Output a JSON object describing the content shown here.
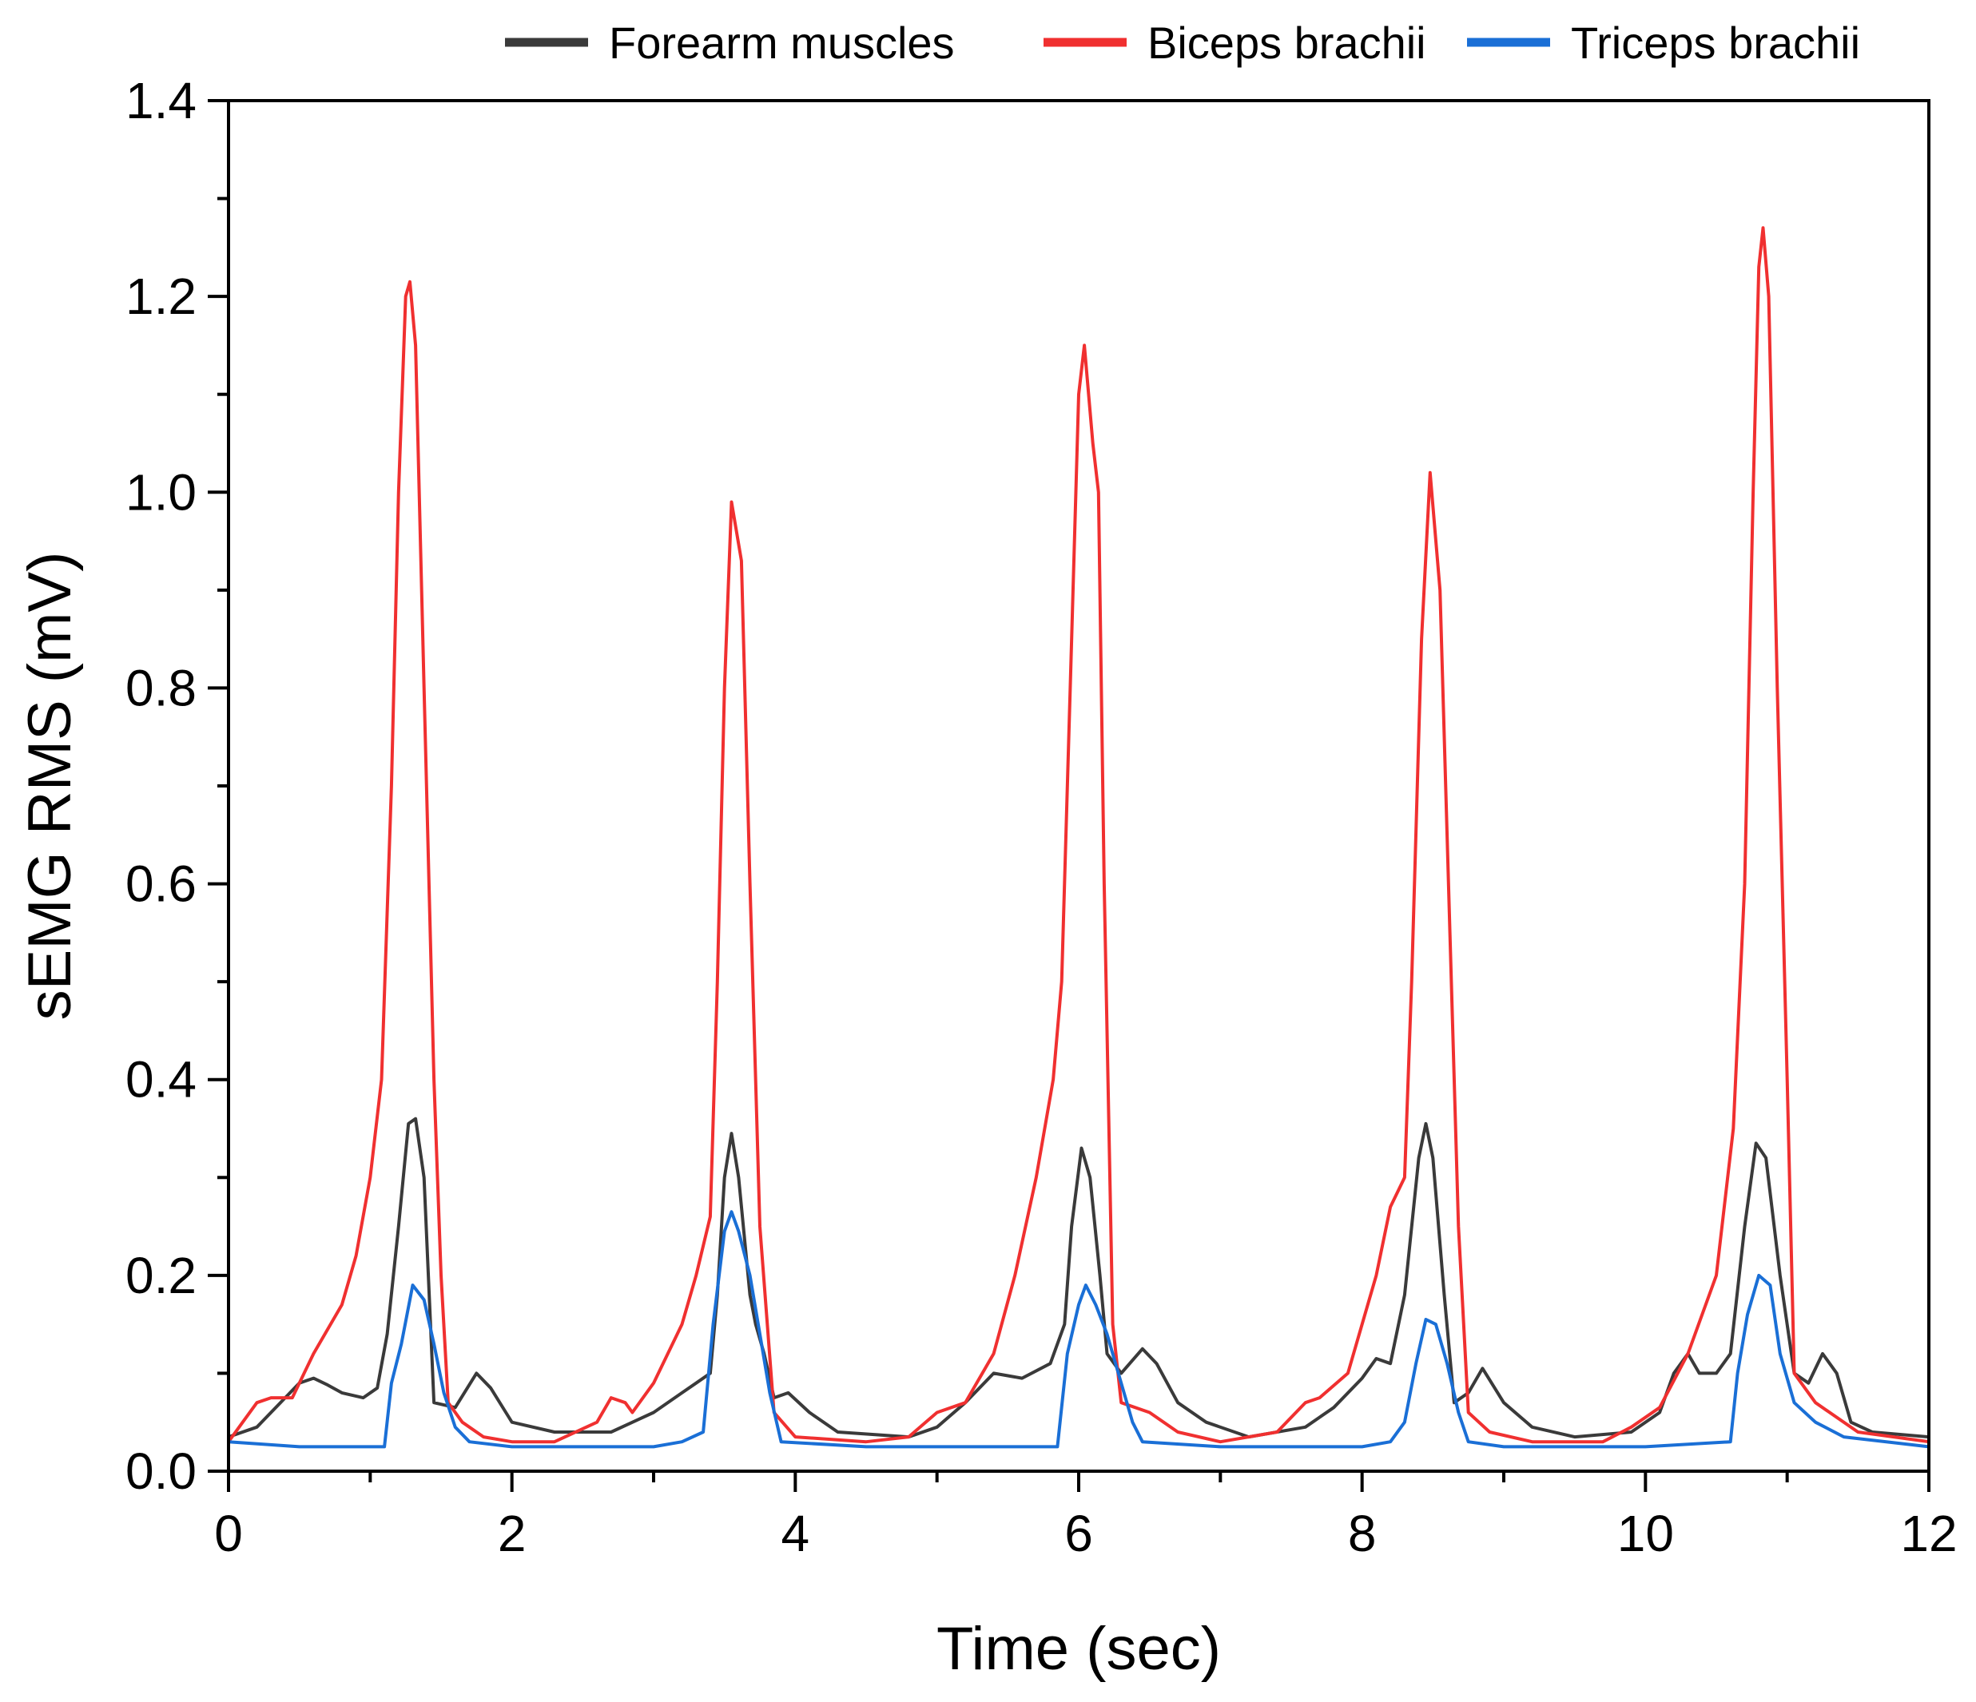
{
  "chart_data": {
    "type": "line",
    "title": "",
    "xlabel": "Time (sec)",
    "ylabel": "sEMG RMS (mV)",
    "xlim": [
      0,
      12
    ],
    "ylim": [
      0.0,
      1.4
    ],
    "x_ticks": [
      0,
      2,
      4,
      6,
      8,
      10,
      12
    ],
    "x_tick_labels": [
      "0",
      "2",
      "4",
      "6",
      "8",
      "10",
      "12"
    ],
    "y_ticks": [
      0.0,
      0.2,
      0.4,
      0.6,
      0.8,
      1.0,
      1.2,
      1.4
    ],
    "y_tick_labels": [
      "0.0",
      "0.2",
      "0.4",
      "0.6",
      "0.8",
      "1.0",
      "1.2",
      "1.4"
    ],
    "grid": false,
    "legend_position": "top",
    "series": [
      {
        "name": "Forearm muscles",
        "color": "#3a3a3a",
        "points": [
          [
            0,
            0.035
          ],
          [
            0.2,
            0.045
          ],
          [
            0.4,
            0.075
          ],
          [
            0.5,
            0.09
          ],
          [
            0.6,
            0.095
          ],
          [
            0.7,
            0.088
          ],
          [
            0.8,
            0.08
          ],
          [
            0.95,
            0.075
          ],
          [
            1.05,
            0.085
          ],
          [
            1.12,
            0.14
          ],
          [
            1.2,
            0.25
          ],
          [
            1.27,
            0.355
          ],
          [
            1.32,
            0.36
          ],
          [
            1.38,
            0.3
          ],
          [
            1.45,
            0.07
          ],
          [
            1.6,
            0.065
          ],
          [
            1.75,
            0.1
          ],
          [
            1.85,
            0.085
          ],
          [
            2.0,
            0.05
          ],
          [
            2.3,
            0.04
          ],
          [
            2.7,
            0.04
          ],
          [
            3.0,
            0.06
          ],
          [
            3.2,
            0.08
          ],
          [
            3.3,
            0.09
          ],
          [
            3.4,
            0.1
          ],
          [
            3.45,
            0.18
          ],
          [
            3.5,
            0.3
          ],
          [
            3.55,
            0.345
          ],
          [
            3.6,
            0.3
          ],
          [
            3.68,
            0.18
          ],
          [
            3.72,
            0.15
          ],
          [
            3.78,
            0.12
          ],
          [
            3.85,
            0.075
          ],
          [
            3.95,
            0.08
          ],
          [
            4.1,
            0.06
          ],
          [
            4.3,
            0.04
          ],
          [
            4.8,
            0.035
          ],
          [
            5.0,
            0.045
          ],
          [
            5.2,
            0.07
          ],
          [
            5.4,
            0.1
          ],
          [
            5.6,
            0.095
          ],
          [
            5.8,
            0.11
          ],
          [
            5.9,
            0.15
          ],
          [
            5.95,
            0.25
          ],
          [
            6.02,
            0.33
          ],
          [
            6.08,
            0.3
          ],
          [
            6.15,
            0.2
          ],
          [
            6.2,
            0.12
          ],
          [
            6.3,
            0.1
          ],
          [
            6.45,
            0.125
          ],
          [
            6.55,
            0.11
          ],
          [
            6.7,
            0.07
          ],
          [
            6.9,
            0.05
          ],
          [
            7.2,
            0.035
          ],
          [
            7.6,
            0.045
          ],
          [
            7.8,
            0.065
          ],
          [
            8.0,
            0.095
          ],
          [
            8.1,
            0.115
          ],
          [
            8.2,
            0.11
          ],
          [
            8.3,
            0.18
          ],
          [
            8.4,
            0.32
          ],
          [
            8.45,
            0.355
          ],
          [
            8.5,
            0.32
          ],
          [
            8.58,
            0.18
          ],
          [
            8.65,
            0.07
          ],
          [
            8.75,
            0.08
          ],
          [
            8.85,
            0.105
          ],
          [
            9.0,
            0.07
          ],
          [
            9.2,
            0.045
          ],
          [
            9.5,
            0.035
          ],
          [
            9.9,
            0.04
          ],
          [
            10.1,
            0.06
          ],
          [
            10.2,
            0.1
          ],
          [
            10.3,
            0.12
          ],
          [
            10.38,
            0.1
          ],
          [
            10.5,
            0.1
          ],
          [
            10.6,
            0.12
          ],
          [
            10.7,
            0.25
          ],
          [
            10.78,
            0.335
          ],
          [
            10.85,
            0.32
          ],
          [
            10.95,
            0.2
          ],
          [
            11.05,
            0.1
          ],
          [
            11.15,
            0.09
          ],
          [
            11.25,
            0.12
          ],
          [
            11.35,
            0.1
          ],
          [
            11.45,
            0.05
          ],
          [
            11.6,
            0.04
          ],
          [
            12.0,
            0.035
          ]
        ]
      },
      {
        "name": "Biceps brachii",
        "color": "#f03030",
        "points": [
          [
            0,
            0.03
          ],
          [
            0.1,
            0.05
          ],
          [
            0.2,
            0.07
          ],
          [
            0.3,
            0.075
          ],
          [
            0.45,
            0.075
          ],
          [
            0.6,
            0.12
          ],
          [
            0.8,
            0.17
          ],
          [
            0.9,
            0.22
          ],
          [
            1.0,
            0.3
          ],
          [
            1.08,
            0.4
          ],
          [
            1.15,
            0.7
          ],
          [
            1.2,
            1.0
          ],
          [
            1.25,
            1.2
          ],
          [
            1.28,
            1.215
          ],
          [
            1.32,
            1.15
          ],
          [
            1.38,
            0.8
          ],
          [
            1.45,
            0.4
          ],
          [
            1.5,
            0.2
          ],
          [
            1.55,
            0.07
          ],
          [
            1.65,
            0.05
          ],
          [
            1.8,
            0.035
          ],
          [
            2.0,
            0.03
          ],
          [
            2.3,
            0.03
          ],
          [
            2.6,
            0.05
          ],
          [
            2.7,
            0.075
          ],
          [
            2.8,
            0.07
          ],
          [
            2.85,
            0.06
          ],
          [
            3.0,
            0.09
          ],
          [
            3.2,
            0.15
          ],
          [
            3.3,
            0.2
          ],
          [
            3.4,
            0.26
          ],
          [
            3.45,
            0.5
          ],
          [
            3.5,
            0.8
          ],
          [
            3.55,
            0.99
          ],
          [
            3.62,
            0.93
          ],
          [
            3.68,
            0.6
          ],
          [
            3.75,
            0.25
          ],
          [
            3.85,
            0.06
          ],
          [
            4.0,
            0.035
          ],
          [
            4.5,
            0.03
          ],
          [
            4.8,
            0.035
          ],
          [
            5.0,
            0.06
          ],
          [
            5.2,
            0.07
          ],
          [
            5.4,
            0.12
          ],
          [
            5.55,
            0.2
          ],
          [
            5.7,
            0.3
          ],
          [
            5.82,
            0.4
          ],
          [
            5.88,
            0.5
          ],
          [
            5.94,
            0.8
          ],
          [
            6.0,
            1.1
          ],
          [
            6.04,
            1.15
          ],
          [
            6.1,
            1.05
          ],
          [
            6.14,
            1.0
          ],
          [
            6.18,
            0.6
          ],
          [
            6.24,
            0.15
          ],
          [
            6.3,
            0.07
          ],
          [
            6.5,
            0.06
          ],
          [
            6.7,
            0.04
          ],
          [
            7.0,
            0.03
          ],
          [
            7.4,
            0.04
          ],
          [
            7.6,
            0.07
          ],
          [
            7.7,
            0.075
          ],
          [
            7.9,
            0.1
          ],
          [
            8.1,
            0.2
          ],
          [
            8.2,
            0.27
          ],
          [
            8.3,
            0.3
          ],
          [
            8.35,
            0.5
          ],
          [
            8.42,
            0.85
          ],
          [
            8.48,
            1.02
          ],
          [
            8.55,
            0.9
          ],
          [
            8.62,
            0.55
          ],
          [
            8.68,
            0.25
          ],
          [
            8.75,
            0.06
          ],
          [
            8.9,
            0.04
          ],
          [
            9.2,
            0.03
          ],
          [
            9.7,
            0.03
          ],
          [
            9.9,
            0.045
          ],
          [
            10.1,
            0.065
          ],
          [
            10.3,
            0.12
          ],
          [
            10.5,
            0.2
          ],
          [
            10.62,
            0.35
          ],
          [
            10.7,
            0.6
          ],
          [
            10.76,
            1.0
          ],
          [
            10.8,
            1.23
          ],
          [
            10.83,
            1.27
          ],
          [
            10.87,
            1.2
          ],
          [
            10.93,
            0.8
          ],
          [
            11.0,
            0.4
          ],
          [
            11.05,
            0.1
          ],
          [
            11.2,
            0.07
          ],
          [
            11.5,
            0.04
          ],
          [
            12.0,
            0.03
          ]
        ]
      },
      {
        "name": "Triceps brachii",
        "color": "#1a6fd6",
        "points": [
          [
            0,
            0.03
          ],
          [
            0.5,
            0.025
          ],
          [
            1.0,
            0.025
          ],
          [
            1.1,
            0.025
          ],
          [
            1.15,
            0.09
          ],
          [
            1.22,
            0.13
          ],
          [
            1.3,
            0.19
          ],
          [
            1.38,
            0.175
          ],
          [
            1.45,
            0.13
          ],
          [
            1.52,
            0.08
          ],
          [
            1.6,
            0.045
          ],
          [
            1.7,
            0.03
          ],
          [
            2.0,
            0.025
          ],
          [
            3.0,
            0.025
          ],
          [
            3.2,
            0.03
          ],
          [
            3.35,
            0.04
          ],
          [
            3.42,
            0.15
          ],
          [
            3.5,
            0.245
          ],
          [
            3.55,
            0.265
          ],
          [
            3.6,
            0.245
          ],
          [
            3.68,
            0.2
          ],
          [
            3.75,
            0.14
          ],
          [
            3.82,
            0.08
          ],
          [
            3.9,
            0.03
          ],
          [
            4.5,
            0.025
          ],
          [
            5.5,
            0.025
          ],
          [
            5.85,
            0.025
          ],
          [
            5.92,
            0.12
          ],
          [
            6.0,
            0.17
          ],
          [
            6.05,
            0.19
          ],
          [
            6.12,
            0.17
          ],
          [
            6.2,
            0.14
          ],
          [
            6.3,
            0.09
          ],
          [
            6.38,
            0.05
          ],
          [
            6.45,
            0.03
          ],
          [
            7.0,
            0.025
          ],
          [
            8.0,
            0.025
          ],
          [
            8.2,
            0.03
          ],
          [
            8.3,
            0.05
          ],
          [
            8.38,
            0.11
          ],
          [
            8.45,
            0.155
          ],
          [
            8.52,
            0.15
          ],
          [
            8.6,
            0.11
          ],
          [
            8.68,
            0.06
          ],
          [
            8.75,
            0.03
          ],
          [
            9.0,
            0.025
          ],
          [
            10.0,
            0.025
          ],
          [
            10.6,
            0.03
          ],
          [
            10.65,
            0.1
          ],
          [
            10.72,
            0.16
          ],
          [
            10.8,
            0.2
          ],
          [
            10.88,
            0.19
          ],
          [
            10.95,
            0.12
          ],
          [
            11.05,
            0.07
          ],
          [
            11.2,
            0.05
          ],
          [
            11.4,
            0.035
          ],
          [
            12.0,
            0.025
          ]
        ]
      }
    ]
  }
}
